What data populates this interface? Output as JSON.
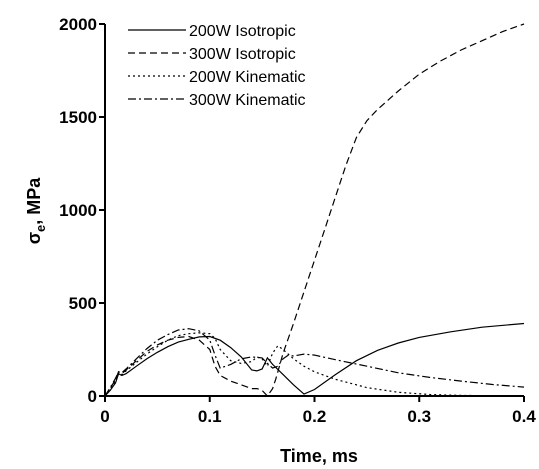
{
  "chart_data": {
    "type": "line",
    "title": "",
    "xlabel": "Time, ms",
    "ylabel": "σ",
    "ylabel_subscript": "e",
    "ylabel_unit": ", MPa",
    "xlim": [
      0,
      0.4
    ],
    "ylim": [
      0,
      2000
    ],
    "xticks": [
      0,
      0.1,
      0.2,
      0.3,
      0.4
    ],
    "yticks": [
      0,
      500,
      1000,
      1500,
      2000
    ],
    "xtick_labels": [
      "0",
      "0.1",
      "0.2",
      "0.3",
      "0.4"
    ],
    "ytick_labels": [
      "0",
      "500",
      "1000",
      "1500",
      "2000"
    ],
    "grid": false,
    "legend_position": "top-left",
    "series": [
      {
        "name": "200W Isotropic",
        "dash": "solid",
        "x": [
          0,
          0.005,
          0.01,
          0.013,
          0.016,
          0.02,
          0.03,
          0.04,
          0.05,
          0.06,
          0.07,
          0.08,
          0.09,
          0.1,
          0.11,
          0.12,
          0.13,
          0.14,
          0.145,
          0.15,
          0.155,
          0.16,
          0.17,
          0.18,
          0.19,
          0.2,
          0.22,
          0.24,
          0.26,
          0.28,
          0.3,
          0.33,
          0.36,
          0.4
        ],
        "y": [
          0,
          30,
          70,
          120,
          110,
          120,
          160,
          200,
          235,
          265,
          290,
          305,
          318,
          320,
          300,
          260,
          210,
          140,
          135,
          145,
          205,
          170,
          115,
          60,
          10,
          35,
          115,
          190,
          245,
          285,
          315,
          345,
          370,
          390
        ]
      },
      {
        "name": "300W Isotropic",
        "dash": "dashed",
        "x": [
          0,
          0.005,
          0.01,
          0.013,
          0.016,
          0.02,
          0.03,
          0.04,
          0.05,
          0.06,
          0.07,
          0.08,
          0.09,
          0.1,
          0.105,
          0.11,
          0.12,
          0.13,
          0.14,
          0.145,
          0.15,
          0.155,
          0.16,
          0.163,
          0.17,
          0.18,
          0.19,
          0.2,
          0.21,
          0.22,
          0.23,
          0.24,
          0.25,
          0.26,
          0.28,
          0.3,
          0.32,
          0.34,
          0.36,
          0.38,
          0.4
        ],
        "y": [
          0,
          40,
          90,
          130,
          120,
          140,
          190,
          240,
          275,
          300,
          315,
          320,
          300,
          250,
          160,
          110,
          80,
          60,
          40,
          40,
          30,
          0,
          40,
          90,
          230,
          390,
          560,
          730,
          900,
          1070,
          1240,
          1390,
          1480,
          1540,
          1640,
          1730,
          1800,
          1860,
          1910,
          1960,
          2000
        ]
      },
      {
        "name": "200W Kinematic",
        "dash": "dotted",
        "x": [
          0,
          0.005,
          0.01,
          0.013,
          0.016,
          0.02,
          0.03,
          0.04,
          0.05,
          0.06,
          0.07,
          0.08,
          0.09,
          0.1,
          0.105,
          0.11,
          0.12,
          0.13,
          0.14,
          0.145,
          0.15,
          0.155,
          0.16,
          0.165,
          0.17,
          0.18,
          0.19,
          0.2,
          0.22,
          0.25,
          0.28,
          0.31,
          0.34,
          0.37,
          0.4
        ],
        "y": [
          0,
          40,
          80,
          125,
          115,
          135,
          180,
          225,
          265,
          300,
          325,
          335,
          340,
          335,
          310,
          250,
          190,
          175,
          185,
          210,
          200,
          160,
          230,
          270,
          250,
          200,
          160,
          130,
          90,
          45,
          20,
          8,
          3,
          1,
          0
        ]
      },
      {
        "name": "300W Kinematic",
        "dash": "dashdot",
        "x": [
          0,
          0.005,
          0.01,
          0.013,
          0.016,
          0.02,
          0.03,
          0.04,
          0.05,
          0.06,
          0.07,
          0.08,
          0.09,
          0.1,
          0.105,
          0.11,
          0.12,
          0.13,
          0.14,
          0.15,
          0.155,
          0.16,
          0.165,
          0.17,
          0.175,
          0.18,
          0.19,
          0.2,
          0.22,
          0.25,
          0.28,
          0.31,
          0.34,
          0.37,
          0.4
        ],
        "y": [
          0,
          45,
          95,
          130,
          125,
          145,
          200,
          255,
          300,
          330,
          355,
          362,
          350,
          300,
          220,
          150,
          170,
          200,
          210,
          205,
          175,
          150,
          160,
          200,
          220,
          215,
          225,
          220,
          195,
          160,
          125,
          100,
          80,
          62,
          48
        ]
      }
    ]
  }
}
